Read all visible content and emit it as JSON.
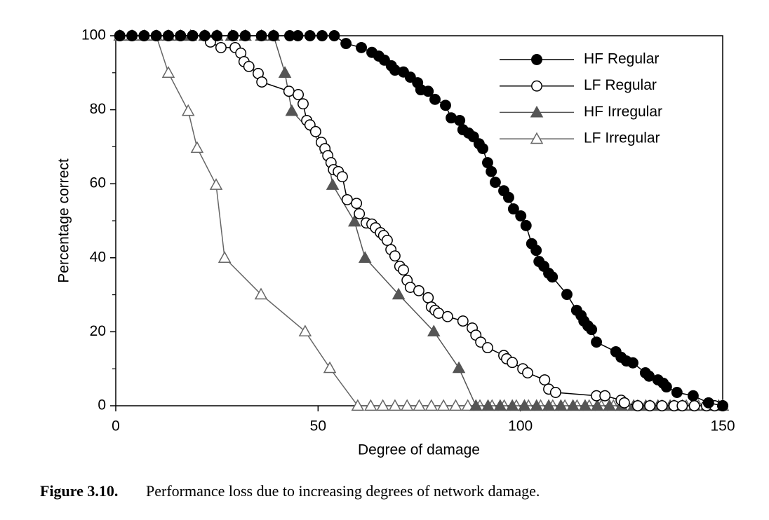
{
  "chart_data": {
    "type": "line",
    "xlabel": "Degree of damage",
    "ylabel": "Percentage correct",
    "xlim": [
      0,
      150
    ],
    "ylim": [
      0,
      100
    ],
    "xticks": [
      0,
      50,
      100,
      150
    ],
    "yticks": [
      0,
      20,
      40,
      60,
      80,
      100
    ],
    "yminorticks": [
      10,
      30,
      50,
      70,
      90
    ],
    "legend": "upper right",
    "series": [
      {
        "name": "HF Regular",
        "color": "#000000",
        "marker": "filled-circle",
        "x": [
          1,
          4,
          7,
          10,
          13,
          16,
          19,
          22,
          25,
          29,
          32,
          36,
          39,
          43,
          45,
          48,
          51,
          54,
          56.9,
          60.7,
          63.3,
          65,
          66.4,
          68.1,
          69,
          71.1,
          72.8,
          74.6,
          75.4,
          77.2,
          78.9,
          81.5,
          82.9,
          85,
          85.8,
          87.2,
          88.4,
          89.8,
          90.7,
          91.9,
          92.8,
          93.8,
          95.9,
          97.1,
          98.3,
          100.1,
          101.4,
          102.8,
          103.9,
          104.6,
          105.8,
          107,
          107.9,
          111.5,
          113.9,
          115,
          115.7,
          116.7,
          117.6,
          118.8,
          123.6,
          124.9,
          126.2,
          127.8,
          130.9,
          131.8,
          134,
          135.3,
          136.1,
          138.7,
          142.7,
          146.5,
          150
        ],
        "values": [
          100,
          100,
          100,
          100,
          100,
          100,
          100,
          100,
          100,
          100,
          100,
          100,
          100,
          100,
          100,
          100,
          100,
          100,
          97.9,
          96.8,
          95.5,
          94.5,
          93.4,
          91.9,
          90.7,
          90.2,
          88.8,
          87.3,
          85.4,
          85,
          82.8,
          81.2,
          77.8,
          77.1,
          74.6,
          73.7,
          72.7,
          70.8,
          69.5,
          65.7,
          63.3,
          60.4,
          58.1,
          56.3,
          53.2,
          51.3,
          48.7,
          43.8,
          42,
          39,
          37.7,
          35.8,
          34.8,
          30.1,
          25.8,
          24.4,
          22.9,
          21.6,
          20.6,
          17.2,
          14.6,
          13.1,
          12.1,
          11.6,
          8.9,
          8,
          7,
          6.1,
          5.1,
          3.6,
          2.7,
          0.8,
          0
        ]
      },
      {
        "name": "LF Regular",
        "color": "#000000",
        "marker": "open-circle",
        "x": [
          1,
          4,
          7,
          10,
          13,
          16,
          19,
          22,
          23.4,
          26,
          29.5,
          30.9,
          31.7,
          32.9,
          35.2,
          36.1,
          42.8,
          45.1,
          46.3,
          47.2,
          48,
          49.4,
          50.8,
          51.7,
          52.4,
          53.2,
          53.8,
          55,
          56,
          57.2,
          59.5,
          60.2,
          61.9,
          63.3,
          64.2,
          65.4,
          66.2,
          67.1,
          68,
          69,
          70.2,
          71.1,
          72,
          72.8,
          74.9,
          77.2,
          78,
          78.9,
          79.8,
          82,
          85.8,
          88.1,
          89,
          90.2,
          91.9,
          95.9,
          96.6,
          98,
          100.6,
          101.8,
          106,
          107,
          108.7,
          118.8,
          120.9,
          124.9,
          125.7,
          129,
          132,
          135,
          138,
          140,
          143,
          146,
          148,
          150
        ],
        "values": [
          100,
          100,
          100,
          100,
          100,
          100,
          100,
          100,
          98.3,
          96.8,
          96.8,
          95.3,
          93,
          91.7,
          89.8,
          87.5,
          85,
          84.1,
          81.6,
          77.1,
          75.9,
          74.1,
          71.2,
          69.5,
          67.6,
          65.7,
          63.8,
          63.3,
          61.9,
          55.7,
          54.7,
          51.9,
          49.4,
          49.1,
          48.1,
          46.8,
          46,
          44.7,
          42.2,
          40.5,
          37.7,
          36.7,
          33.9,
          32,
          31.1,
          29.2,
          26.7,
          25.8,
          25,
          24.1,
          22.9,
          21,
          19.1,
          17.2,
          15.7,
          13.6,
          12.7,
          11.7,
          10,
          8.9,
          7,
          4.5,
          3.6,
          2.7,
          2.7,
          1.5,
          0.8,
          0,
          0,
          0,
          0,
          0,
          0,
          0,
          0,
          0
        ]
      },
      {
        "name": "HF Irregular",
        "color": "#555555",
        "marker": "filled-triangle",
        "x": [
          13,
          16,
          18.5,
          22,
          25,
          28.6,
          32,
          36,
          39,
          41.8,
          43.5,
          52,
          53.6,
          59,
          61.6,
          69.9,
          78.6,
          84.8,
          89,
          92,
          95,
          98,
          101,
          104,
          107,
          110,
          113,
          116,
          119,
          122,
          125,
          128,
          131,
          134,
          137,
          140,
          143,
          146,
          149
        ],
        "values": [
          100,
          100,
          100,
          100,
          100,
          100,
          100,
          100,
          100,
          90,
          79.7,
          69.5,
          59.7,
          49.8,
          40,
          30.1,
          20.1,
          10.2,
          0,
          0,
          0,
          0,
          0,
          0,
          0,
          0,
          0,
          0,
          0,
          0,
          0,
          0,
          0,
          0,
          0,
          0,
          0,
          0,
          0
        ]
      },
      {
        "name": "LF Irregular",
        "color": "#666666",
        "marker": "open-triangle",
        "x": [
          1,
          4,
          7,
          10,
          13,
          17.9,
          20.1,
          24.8,
          26.9,
          35.9,
          46.8,
          52.9,
          59.8,
          63,
          66,
          69,
          72,
          75,
          78,
          81,
          84,
          87,
          90,
          93,
          96,
          99,
          102,
          105,
          108,
          111,
          114,
          117,
          120,
          123,
          126,
          129,
          132,
          135,
          138,
          141,
          144,
          147,
          150
        ],
        "values": [
          100,
          100,
          100,
          100,
          90,
          79.7,
          69.7,
          59.7,
          40,
          30.1,
          20.1,
          10.2,
          0,
          0,
          0,
          0,
          0,
          0,
          0,
          0,
          0,
          0,
          0,
          0,
          0,
          0,
          0,
          0,
          0,
          0,
          0,
          0,
          0,
          0,
          0,
          0,
          0,
          0,
          0,
          0,
          0,
          0,
          0
        ]
      }
    ]
  },
  "caption": {
    "label": "Figure 3.10.",
    "text": "Performance loss due to increasing degrees of network damage."
  }
}
